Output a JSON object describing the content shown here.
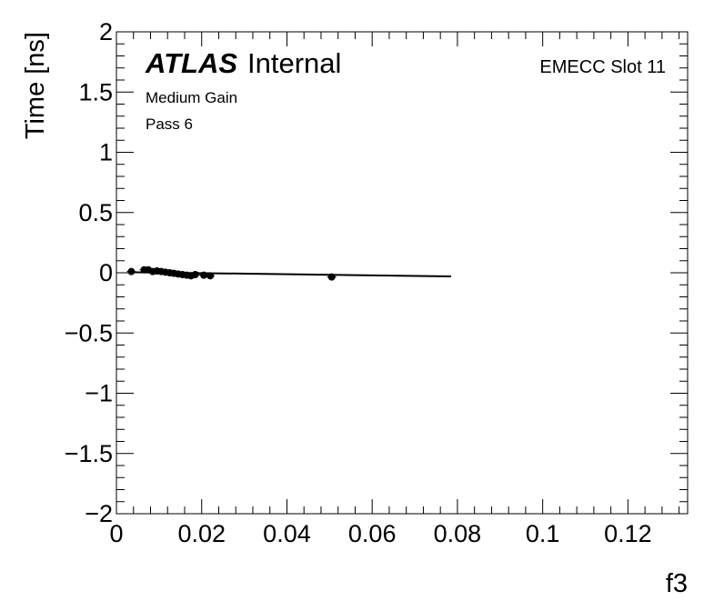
{
  "labels": {
    "atlas": "ATLAS",
    "internal": "Internal",
    "gain": "Medium Gain",
    "pass": "Pass 6",
    "slot": "EMECC Slot 11"
  },
  "chart_data": {
    "type": "scatter",
    "xlabel": "f3",
    "ylabel": "Time [ns]",
    "xlim": [
      0,
      0.134
    ],
    "ylim": [
      -2,
      2
    ],
    "xticks": [
      0,
      0.02,
      0.04,
      0.06,
      0.08,
      0.1,
      0.12
    ],
    "xtick_labels": [
      "0",
      "0.02",
      "0.04",
      "0.06",
      "0.08",
      "0.1",
      "0.12"
    ],
    "yticks": [
      -2,
      -1.5,
      -1,
      -0.5,
      0,
      0.5,
      1,
      1.5,
      2
    ],
    "ytick_labels": [
      "−2",
      "−1.5",
      "−1",
      "−0.5",
      "0",
      "0.5",
      "1",
      "1.5",
      "2"
    ],
    "grid": false,
    "points": [
      {
        "x": 0.0035,
        "y": 0.01
      },
      {
        "x": 0.0065,
        "y": 0.025
      },
      {
        "x": 0.0075,
        "y": 0.025
      },
      {
        "x": 0.0085,
        "y": 0.01
      },
      {
        "x": 0.0095,
        "y": 0.015
      },
      {
        "x": 0.0105,
        "y": 0.01
      },
      {
        "x": 0.0115,
        "y": 0.005
      },
      {
        "x": 0.0125,
        "y": 0.0
      },
      {
        "x": 0.0135,
        "y": -0.005
      },
      {
        "x": 0.0145,
        "y": -0.01
      },
      {
        "x": 0.0155,
        "y": -0.015
      },
      {
        "x": 0.0165,
        "y": -0.02
      },
      {
        "x": 0.0175,
        "y": -0.025
      },
      {
        "x": 0.0185,
        "y": -0.015
      },
      {
        "x": 0.0205,
        "y": -0.02
      },
      {
        "x": 0.022,
        "y": -0.025
      },
      {
        "x": 0.0505,
        "y": -0.035
      }
    ],
    "fit_line": {
      "x": [
        0.003,
        0.0785
      ],
      "y": [
        0.005,
        -0.03
      ]
    }
  }
}
